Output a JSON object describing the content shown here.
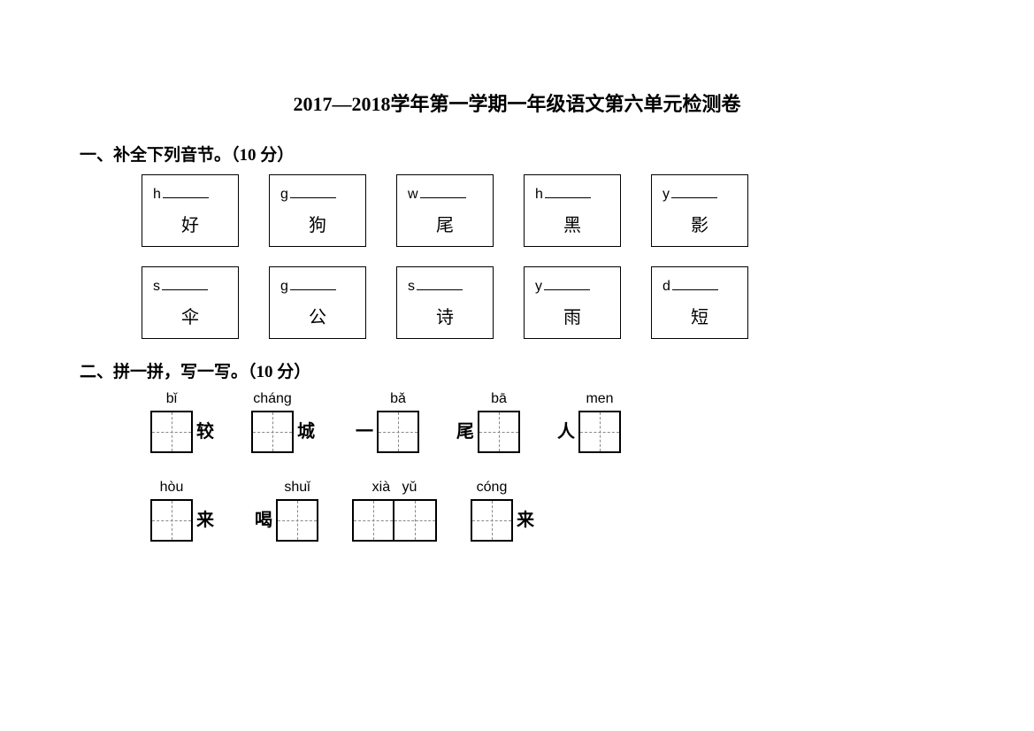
{
  "title": "2017—2018学年第一学期一年级语文第六单元检测卷",
  "section1": {
    "header": "一、补全下列音节。（10 分）",
    "row1": [
      {
        "initial": "h",
        "char": "好"
      },
      {
        "initial": "g",
        "char": "狗"
      },
      {
        "initial": "w",
        "char": "尾"
      },
      {
        "initial": "h",
        "char": "黑"
      },
      {
        "initial": "y",
        "char": "影"
      }
    ],
    "row2": [
      {
        "initial": "s",
        "char": "伞"
      },
      {
        "initial": "g",
        "char": "公"
      },
      {
        "initial": "s",
        "char": "诗"
      },
      {
        "initial": "y",
        "char": "雨"
      },
      {
        "initial": "d",
        "char": "短"
      }
    ]
  },
  "section2": {
    "header": "二、拼一拼，写一写。（10 分）",
    "row1": [
      {
        "pinyin": "bǐ",
        "boxes": 1,
        "suffix": "较"
      },
      {
        "pinyin": "cháng",
        "boxes": 1,
        "suffix": "城"
      },
      {
        "prefix": "一",
        "pinyin": "bǎ",
        "boxes": 1
      },
      {
        "prefix": "尾",
        "pinyin": "bā",
        "boxes": 1
      },
      {
        "prefix": "人",
        "pinyin": "men",
        "boxes": 1
      }
    ],
    "row2": [
      {
        "pinyin": "hòu",
        "boxes": 1,
        "suffix": "来"
      },
      {
        "prefix": "喝",
        "pinyin": "shuǐ",
        "boxes": 1
      },
      {
        "pinyin": "xià   yǔ",
        "boxes": 2
      },
      {
        "pinyin": "cóng",
        "boxes": 1,
        "suffix": "来"
      }
    ]
  },
  "colors": {
    "background": "#ffffff",
    "text": "#000000",
    "border": "#000000",
    "dash": "#888888"
  }
}
